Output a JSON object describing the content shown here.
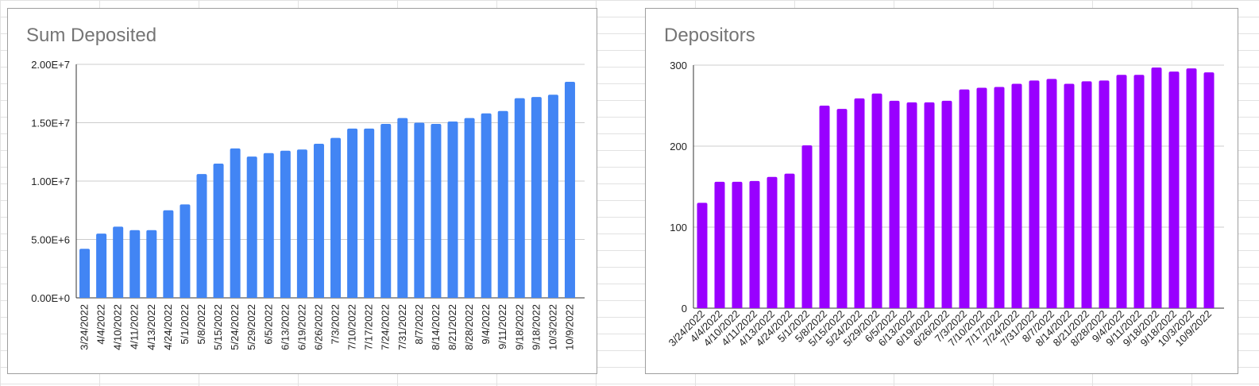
{
  "chart_data": [
    {
      "type": "bar",
      "title": "Sum Deposited",
      "xlabel": "",
      "ylabel": "",
      "ylim": [
        0,
        20000000
      ],
      "yticks": [
        {
          "value": 0,
          "label": "0.00E+0"
        },
        {
          "value": 5000000,
          "label": "5.00E+6"
        },
        {
          "value": 10000000,
          "label": "1.00E+7"
        },
        {
          "value": 15000000,
          "label": "1.50E+7"
        },
        {
          "value": 20000000,
          "label": "2.00E+7"
        }
      ],
      "color": "#4285f4",
      "grid": true,
      "categories": [
        "3/24/2022",
        "4/4/2022",
        "4/10/2022",
        "4/11/2022",
        "4/13/2022",
        "4/24/2022",
        "5/1/2022",
        "5/8/2022",
        "5/15/2022",
        "5/24/2022",
        "5/29/2022",
        "6/5/2022",
        "6/13/2022",
        "6/19/2022",
        "6/26/2022",
        "7/3/2022",
        "7/10/2022",
        "7/17/2022",
        "7/24/2022",
        "7/31/2022",
        "8/7/2022",
        "8/14/2022",
        "8/21/2022",
        "8/28/2022",
        "9/4/2022",
        "9/11/2022",
        "9/18/2022",
        "9/18/2022",
        "10/3/2022",
        "10/9/2022"
      ],
      "values": [
        4200000,
        5500000,
        6100000,
        5800000,
        5800000,
        7500000,
        8000000,
        10600000,
        11500000,
        12800000,
        12100000,
        12400000,
        12600000,
        12700000,
        13200000,
        13700000,
        14500000,
        14500000,
        14900000,
        15400000,
        15000000,
        14900000,
        15100000,
        15400000,
        15800000,
        16000000,
        17100000,
        17200000,
        17400000,
        18500000
      ]
    },
    {
      "type": "bar",
      "title": "Depositors",
      "xlabel": "",
      "ylabel": "",
      "ylim": [
        0,
        300
      ],
      "yticks": [
        {
          "value": 0,
          "label": "0"
        },
        {
          "value": 100,
          "label": "100"
        },
        {
          "value": 200,
          "label": "200"
        },
        {
          "value": 300,
          "label": "300"
        }
      ],
      "color": "#9900ff",
      "grid": true,
      "categories": [
        "3/24/2022",
        "4/4/2022",
        "4/10/2022",
        "4/11/2022",
        "4/13/2022",
        "4/24/2022",
        "5/1/2022",
        "5/8/2022",
        "5/15/2022",
        "5/24/2022",
        "5/29/2022",
        "6/5/2022",
        "6/13/2022",
        "6/19/2022",
        "6/26/2022",
        "7/3/2022",
        "7/10/2022",
        "7/17/2022",
        "7/24/2022",
        "7/31/2022",
        "8/7/2022",
        "8/14/2022",
        "8/21/2022",
        "8/28/2022",
        "9/4/2022",
        "9/11/2022",
        "9/18/2022",
        "9/18/2022",
        "10/3/2022",
        "10/9/2022"
      ],
      "values": [
        130,
        156,
        156,
        157,
        162,
        166,
        201,
        250,
        246,
        259,
        265,
        256,
        254,
        254,
        256,
        270,
        272,
        273,
        277,
        281,
        283,
        277,
        280,
        281,
        288,
        288,
        297,
        292,
        296,
        291
      ]
    }
  ]
}
